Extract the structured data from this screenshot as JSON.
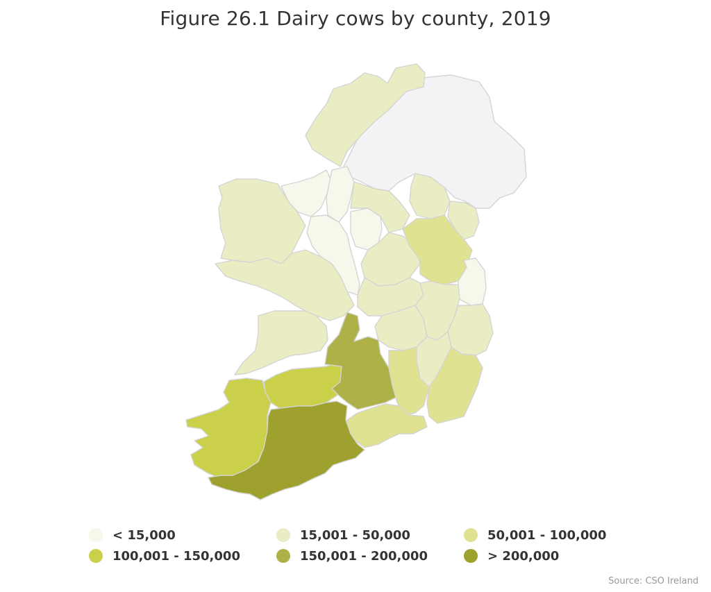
{
  "title": "Figure 26.1 Dairy cows by county, 2019",
  "source": "Source: CSO Ireland",
  "legend": [
    {
      "label": "< 15,000",
      "color": "#f7f8ec"
    },
    {
      "label": "15,001 - 50,000",
      "color": "#eaedc3"
    },
    {
      "label": "50,001 - 100,000",
      "color": "#dfe291"
    },
    {
      "label": "100,001 - 150,000",
      "color": "#cbd04a"
    },
    {
      "label": "150,001 - 200,000",
      "color": "#aeb048"
    },
    {
      "label": "> 200,000",
      "color": "#9ea12e"
    }
  ],
  "colors": {
    "no_data": "#f3f3f5",
    "border": "#d4d4d4"
  },
  "regions": {
    "northern_ireland": "no_data",
    "donegal": "15,001 - 50,000",
    "mayo": "15,001 - 50,000",
    "galway": "15,001 - 50,000",
    "clare": "15,001 - 50,000",
    "sligo": "< 15,000",
    "leitrim": "< 15,000",
    "roscommon": "< 15,000",
    "longford": "< 15,000",
    "dublin": "< 15,000",
    "cavan": "15,001 - 50,000",
    "monaghan": "15,001 - 50,000",
    "louth": "15,001 - 50,000",
    "westmeath": "15,001 - 50,000",
    "offaly": "15,001 - 50,000",
    "laois": "15,001 - 50,000",
    "kildare": "15,001 - 50,000",
    "wicklow": "15,001 - 50,000",
    "carlow": "15,001 - 50,000",
    "meath": "50,001 - 100,000",
    "kilkenny": "50,001 - 100,000",
    "wexford": "50,001 - 100,000",
    "waterford": "50,001 - 100,000",
    "kerry": "100,001 - 150,000",
    "limerick": "100,001 - 150,000",
    "tipperary": "150,001 - 200,000",
    "cork": "> 200,000"
  }
}
